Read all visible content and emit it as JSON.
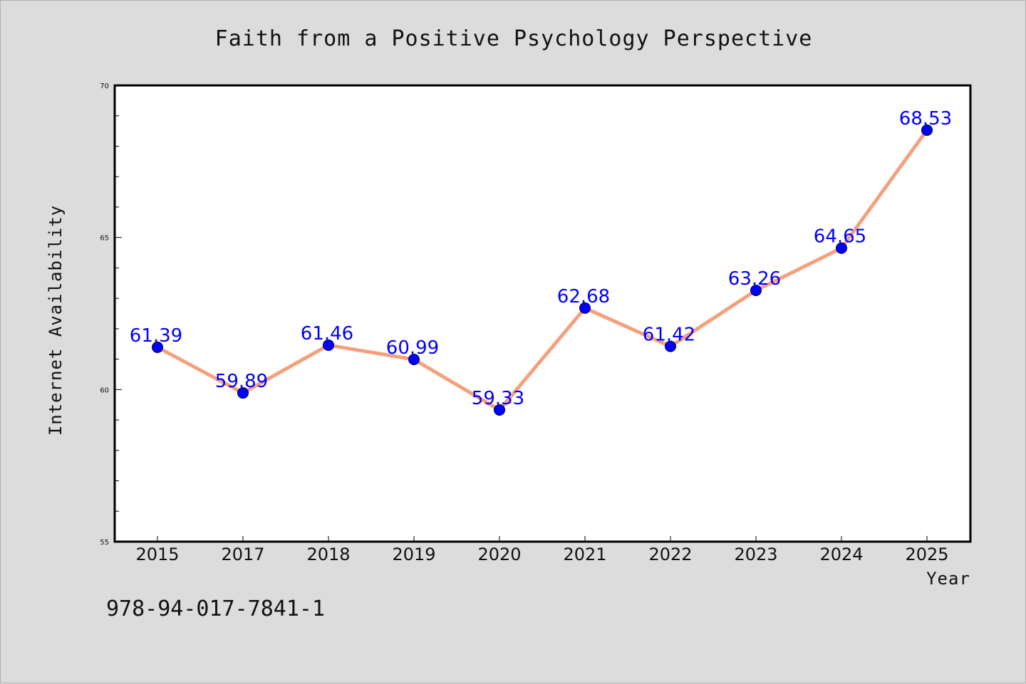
{
  "chart_data": {
    "type": "line",
    "title": "Faith from a Positive Psychology Perspective",
    "xlabel": "Year",
    "ylabel": "Internet Availability",
    "categories": [
      "2015",
      "2017",
      "2018",
      "2019",
      "2020",
      "2021",
      "2022",
      "2023",
      "2024",
      "2025"
    ],
    "series": [
      {
        "values": [
          61.39,
          59.89,
          61.46,
          60.99,
          59.33,
          62.68,
          61.42,
          63.26,
          64.65,
          68.53
        ],
        "data_labels": [
          "61.39",
          "59.89",
          "61.46",
          "60.99",
          "59.33",
          "62.68",
          "61.42",
          "63.26",
          "64.65",
          "68.53"
        ],
        "line_color": "#f4a07c",
        "marker_color": "#0000ff"
      }
    ],
    "ylim": [
      55,
      70
    ],
    "yticks": [
      "55",
      "60",
      "65",
      "70"
    ],
    "grid": false,
    "legend": "none"
  },
  "annotations": {
    "isbn": "978-94-017-7841-1"
  },
  "colors": {
    "background": "#dcdcdc",
    "plot_background": "#ffffff",
    "line": "#f4a07c",
    "marker": "#0000ff",
    "data_label": "#0000ff"
  }
}
